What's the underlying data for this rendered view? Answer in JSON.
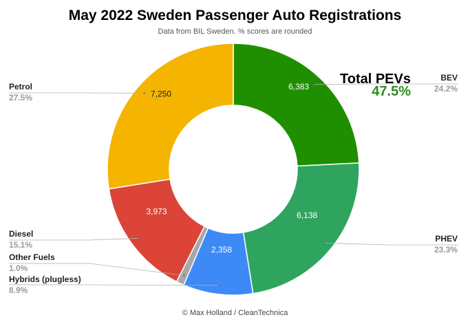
{
  "chart_data": {
    "type": "pie",
    "donut": true,
    "title": "May 2022 Sweden Passenger Auto Registrations",
    "subtitle": "Data from BIL Sweden. % scores are rounded",
    "credit": "© Max Holland / CleanTechnica",
    "annotation": {
      "label": "Total PEVs",
      "value": "47.5%",
      "color": "#2e8b1e"
    },
    "slices": [
      {
        "name": "BEV",
        "value": 6383,
        "value_label": "6,383",
        "percent": "24.2%",
        "color": "#1f8f00"
      },
      {
        "name": "PHEV",
        "value": 6138,
        "value_label": "6,138",
        "percent": "23.3%",
        "color": "#2ea45f"
      },
      {
        "name": "Hybrids (plugless)",
        "value": 2358,
        "value_label": "2,358",
        "percent": "8.9%",
        "color": "#3d8af7"
      },
      {
        "name": "Other Fuels",
        "value": 264,
        "value_label": "",
        "percent": "1.0%",
        "color": "#a8a8a8"
      },
      {
        "name": "Diesel",
        "value": 3973,
        "value_label": "3,973",
        "percent": "15.1%",
        "color": "#db4437"
      },
      {
        "name": "Petrol",
        "value": 7250,
        "value_label": "7,250",
        "percent": "27.5%",
        "color": "#f4b400"
      }
    ]
  }
}
